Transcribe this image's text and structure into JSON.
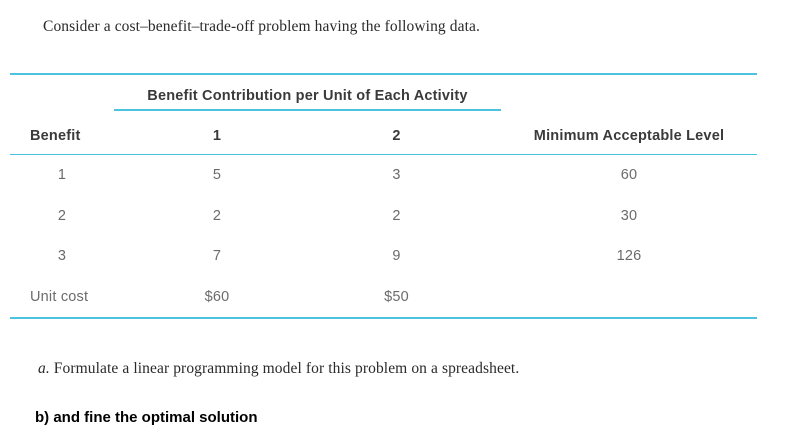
{
  "intro": "Consider a cost–benefit–trade-off problem having the following data.",
  "table": {
    "accent_color": "#4cc3e2",
    "span_header": "Benefit Contribution per Unit of Each Activity",
    "columns": [
      "Benefit",
      "1",
      "2",
      "Minimum Acceptable Level"
    ],
    "rows": [
      {
        "cells": [
          "1",
          "5",
          "3",
          "60"
        ]
      },
      {
        "cells": [
          "2",
          "2",
          "2",
          "30"
        ]
      },
      {
        "cells": [
          "3",
          "7",
          "9",
          "126"
        ]
      },
      {
        "cells": [
          "Unit cost",
          "$60",
          "$50",
          ""
        ]
      }
    ]
  },
  "question_a": {
    "label": "a.",
    "text": " Formulate a linear programming model for this problem on a spreadsheet."
  },
  "question_b": "b) and fine the optimal solution"
}
